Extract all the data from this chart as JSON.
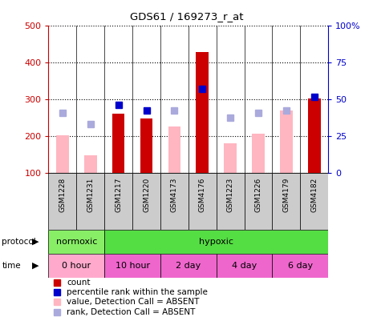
{
  "title": "GDS61 / 169273_r_at",
  "samples": [
    "GSM1228",
    "GSM1231",
    "GSM1217",
    "GSM1220",
    "GSM4173",
    "GSM4176",
    "GSM1223",
    "GSM1226",
    "GSM4179",
    "GSM4182"
  ],
  "count_values": [
    null,
    null,
    260,
    248,
    null,
    428,
    null,
    null,
    null,
    302
  ],
  "rank_values": [
    null,
    null,
    285,
    268,
    null,
    328,
    null,
    null,
    null,
    305
  ],
  "absent_value": [
    202,
    148,
    null,
    null,
    225,
    null,
    180,
    205,
    270,
    null
  ],
  "absent_rank": [
    262,
    232,
    null,
    null,
    270,
    null,
    249,
    263,
    268,
    null
  ],
  "ylim_left": [
    100,
    500
  ],
  "ylim_right": [
    0,
    100
  ],
  "yticks_left": [
    100,
    200,
    300,
    400,
    500
  ],
  "yticks_right": [
    0,
    25,
    50,
    75,
    100
  ],
  "protocol_groups": [
    {
      "label": "normoxic",
      "start": 0,
      "end": 2,
      "color": "#88EE66"
    },
    {
      "label": "hypoxic",
      "start": 2,
      "end": 10,
      "color": "#55DD44"
    }
  ],
  "time_groups": [
    {
      "label": "0 hour",
      "start": 0,
      "end": 2,
      "color": "#FFAACC"
    },
    {
      "label": "10 hour",
      "start": 2,
      "end": 4,
      "color": "#EE66CC"
    },
    {
      "label": "2 day",
      "start": 4,
      "end": 6,
      "color": "#EE66CC"
    },
    {
      "label": "4 day",
      "start": 6,
      "end": 8,
      "color": "#EE66CC"
    },
    {
      "label": "6 day",
      "start": 8,
      "end": 10,
      "color": "#EE66CC"
    }
  ],
  "count_color": "#CC0000",
  "rank_color": "#0000CC",
  "absent_val_color": "#FFB6C1",
  "absent_rank_color": "#AAAADD",
  "sample_bg": "#CCCCCC",
  "bg_color": "#FFFFFF",
  "left_axis_color": "#CC0000",
  "right_axis_color": "#0000CC",
  "bar_width": 0.45
}
